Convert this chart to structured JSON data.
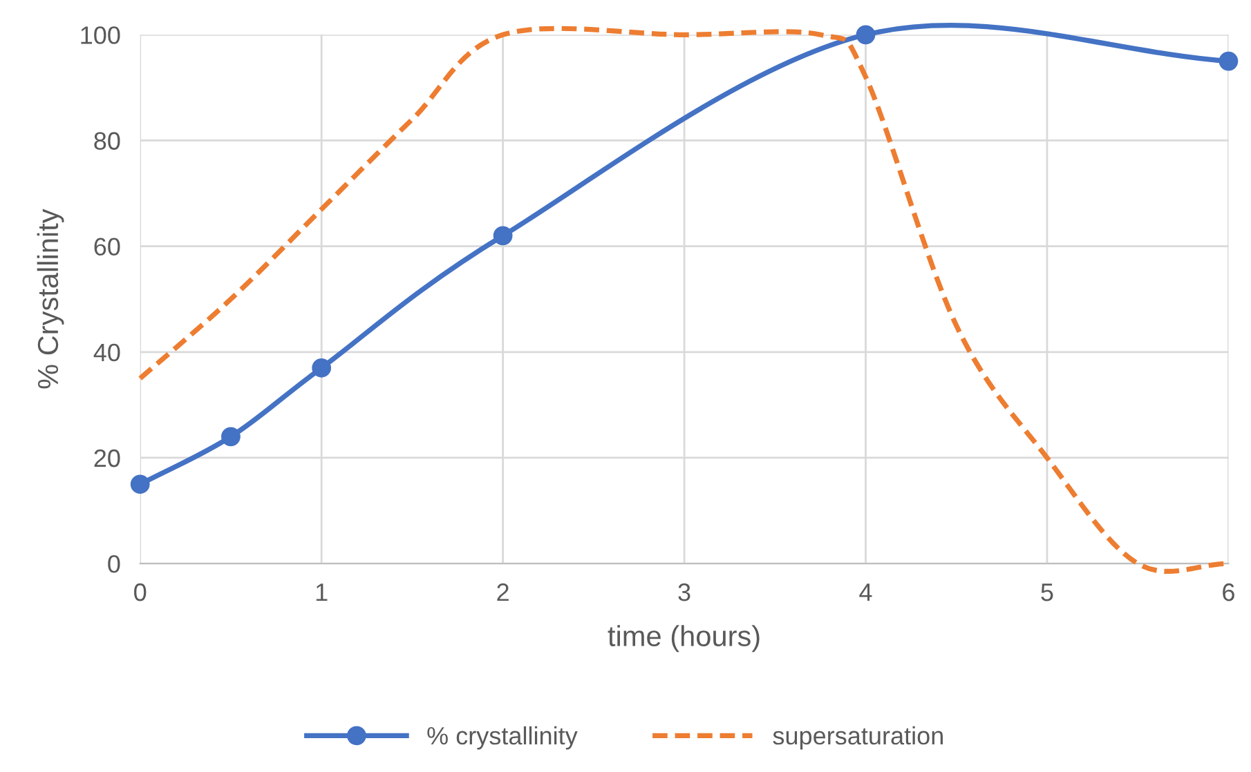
{
  "chart_data": {
    "type": "line",
    "xlabel": "time (hours)",
    "ylabel": "% Crystallinity",
    "series": [
      {
        "name": "% crystallinity",
        "color": "#4472c4",
        "x": [
          0,
          0.5,
          1,
          2,
          4,
          6
        ],
        "values": [
          15,
          24,
          37,
          62,
          100,
          95
        ],
        "marker": "circle",
        "line_style": "solid"
      },
      {
        "name": "supersaturation",
        "color": "#ed7d31",
        "x": [
          0,
          0.5,
          1,
          1.5,
          2,
          3,
          3.75,
          4,
          4.5,
          5,
          5.5,
          6
        ],
        "values": [
          35,
          50,
          67,
          84,
          100,
          100,
          100,
          92,
          45,
          20,
          0,
          0
        ],
        "marker": "none",
        "line_style": "dashed"
      }
    ],
    "xlim": [
      0,
      6
    ],
    "xticks": [
      0,
      1,
      2,
      3,
      4,
      5,
      6
    ],
    "ylim": [
      0,
      100
    ],
    "yticks": [
      0,
      20,
      40,
      60,
      80,
      100
    ],
    "grid": true,
    "legend": "bottom"
  }
}
